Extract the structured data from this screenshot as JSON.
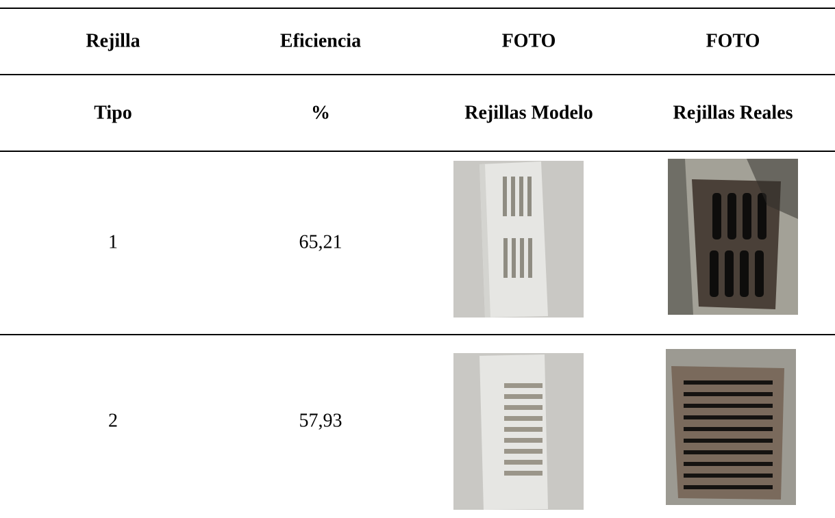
{
  "table": {
    "header": [
      [
        "Rejilla",
        "Eficiencia",
        "FOTO",
        "FOTO"
      ],
      [
        "Tipo",
        "%",
        "Rejillas Modelo",
        "Rejillas Reales"
      ]
    ],
    "rows": [
      [
        "1",
        "65,21"
      ],
      [
        "2",
        "57,93"
      ]
    ]
  }
}
